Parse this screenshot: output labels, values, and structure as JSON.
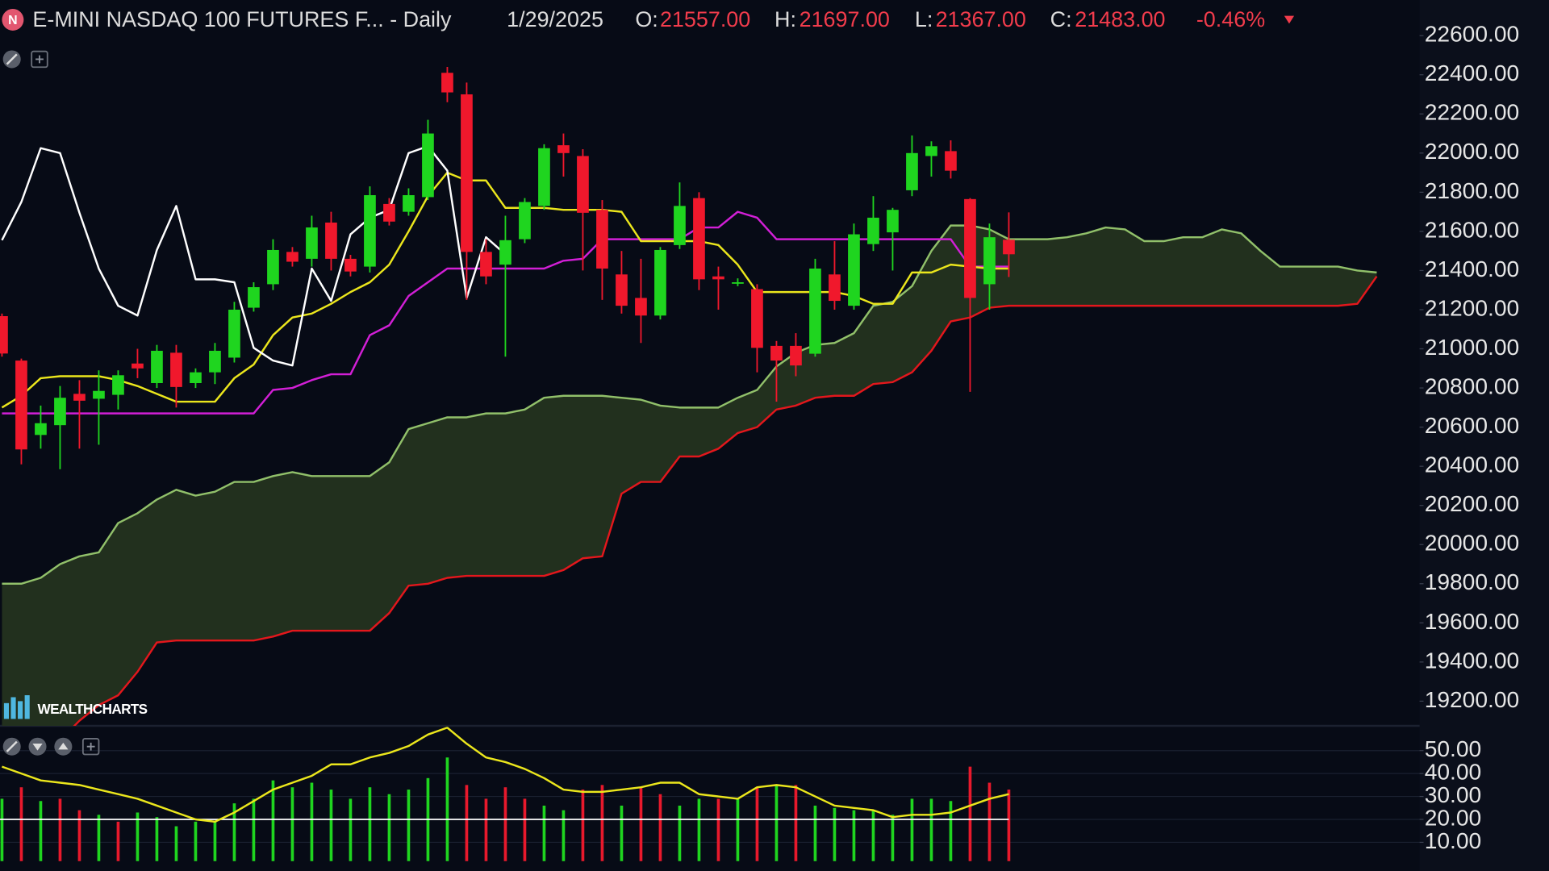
{
  "header": {
    "symbol_icon": "N",
    "title": "E-MINI NASDAQ 100 FUTURES F... - Daily",
    "date": "1/29/2025",
    "fields": [
      {
        "label": "O:",
        "value": "21557.00"
      },
      {
        "label": "H:",
        "value": "21697.00"
      },
      {
        "label": "L:",
        "value": "21367.00"
      },
      {
        "label": "C:",
        "value": "21483.00"
      }
    ],
    "change": "-0.46%"
  },
  "branding": "WEALTHCHARTS",
  "chart_data": [
    {
      "type": "candlestick",
      "ylim": [
        19074,
        22782
      ],
      "yticks": [
        {
          "value": 22600,
          "label": "22600.00"
        },
        {
          "value": 22400,
          "label": "22400.00"
        },
        {
          "value": 22200,
          "label": "22200.00"
        },
        {
          "value": 22000,
          "label": "22000.00"
        },
        {
          "value": 21800,
          "label": "21800.00"
        },
        {
          "value": 21600,
          "label": "21600.00"
        },
        {
          "value": 21400,
          "label": "21400.00"
        },
        {
          "value": 21200,
          "label": "21200.00"
        },
        {
          "value": 21000,
          "label": "21000.00"
        },
        {
          "value": 20800,
          "label": "20800.00"
        },
        {
          "value": 20600,
          "label": "20600.00"
        },
        {
          "value": 20400,
          "label": "20400.00"
        },
        {
          "value": 20200,
          "label": "20200.00"
        },
        {
          "value": 20000,
          "label": "20000.00"
        },
        {
          "value": 19800,
          "label": "19800.00"
        },
        {
          "value": 19600,
          "label": "19600.00"
        },
        {
          "value": 19400,
          "label": "19400.00"
        },
        {
          "value": 19200,
          "label": "19200.00"
        }
      ],
      "grid": false,
      "up_color": "#1fd51f",
      "down_color": "#f0182c",
      "open": [
        21167,
        20940,
        20560,
        20610,
        20770,
        20745,
        20765,
        20925,
        20825,
        20980,
        20825,
        20880,
        20955,
        21210,
        21330,
        21495,
        21460,
        21645,
        21460,
        21420,
        21740,
        21700,
        21775,
        22410,
        22300,
        21495,
        21430,
        21560,
        21730,
        22040,
        21985,
        21710,
        21380,
        21260,
        21170,
        21530,
        21770,
        21370,
        21335,
        21305,
        21015,
        21015,
        20975,
        21380,
        21220,
        21535,
        21595,
        21810,
        21985,
        22010,
        21765,
        21330,
        21557
      ],
      "high": [
        21180,
        20950,
        20710,
        20810,
        20840,
        20890,
        20890,
        21000,
        21020,
        21020,
        20900,
        21030,
        21240,
        21340,
        21560,
        21520,
        21680,
        21700,
        21480,
        21830,
        21770,
        21820,
        22170,
        22440,
        22360,
        21560,
        21680,
        21770,
        22045,
        22100,
        22020,
        21760,
        21500,
        21460,
        21520,
        21850,
        21800,
        21420,
        21360,
        21330,
        21040,
        21080,
        21460,
        21550,
        21640,
        21780,
        21720,
        22090,
        22060,
        22065,
        21770,
        21640,
        21697
      ],
      "low": [
        20960,
        20410,
        20490,
        20385,
        20490,
        20510,
        20690,
        20850,
        20800,
        20700,
        20800,
        20820,
        20930,
        21190,
        21300,
        21420,
        21420,
        21400,
        21370,
        21390,
        21630,
        21680,
        21760,
        22260,
        21250,
        21330,
        20960,
        21540,
        21710,
        21880,
        21400,
        21250,
        21180,
        21030,
        21150,
        21510,
        21300,
        21200,
        21320,
        20880,
        20730,
        20860,
        20960,
        21200,
        21200,
        21500,
        21400,
        21780,
        21880,
        21870,
        20780,
        21200,
        21367
      ],
      "close": [
        20976,
        20486,
        20620,
        20750,
        20735,
        20785,
        20865,
        20900,
        20990,
        20805,
        20880,
        20990,
        21200,
        21315,
        21505,
        21445,
        21620,
        21460,
        21395,
        21785,
        21650,
        21785,
        22100,
        22310,
        21495,
        21370,
        21555,
        21750,
        22025,
        22000,
        21695,
        21410,
        21220,
        21170,
        21505,
        21730,
        21355,
        21355,
        21340,
        21005,
        20940,
        20915,
        21410,
        21245,
        21585,
        21670,
        21710,
        22000,
        22035,
        21910,
        21260,
        21570,
        21483
      ],
      "cloud_color": "#24331f",
      "overlays": [
        {
          "color": "#91c06a",
          "values": [
            19800,
            19800,
            19830,
            19900,
            19940,
            19960,
            20110,
            20160,
            20230,
            20280,
            20250,
            20270,
            20320,
            20320,
            20350,
            20370,
            20350,
            20350,
            20350,
            20350,
            20420,
            20590,
            20620,
            20650,
            20650,
            20670,
            20670,
            20690,
            20750,
            20760,
            20760,
            20760,
            20750,
            20740,
            20710,
            20700,
            20700,
            20700,
            20750,
            20790,
            20910,
            20980,
            21020,
            21030,
            21080,
            21220,
            21240,
            21320,
            21500,
            21630,
            21630,
            21610,
            21560,
            21560,
            21560,
            21570,
            21590,
            21620,
            21610,
            21550,
            21550,
            21570,
            21570,
            21610,
            21590,
            21500,
            21420,
            21420,
            21420,
            21420,
            21400,
            21390
          ]
        },
        {
          "color": "#e3171c",
          "values": [
            19000,
            19000,
            19000,
            19000,
            19100,
            19180,
            19230,
            19350,
            19500,
            19510,
            19510,
            19510,
            19510,
            19510,
            19530,
            19560,
            19560,
            19560,
            19560,
            19560,
            19650,
            19790,
            19800,
            19830,
            19840,
            19840,
            19840,
            19840,
            19840,
            19870,
            19930,
            19940,
            20260,
            20320,
            20320,
            20450,
            20450,
            20490,
            20570,
            20600,
            20690,
            20710,
            20750,
            20760,
            20760,
            20820,
            20830,
            20880,
            20990,
            21140,
            21160,
            21210,
            21220,
            21220,
            21220,
            21220,
            21220,
            21220,
            21220,
            21220,
            21220,
            21220,
            21220,
            21220,
            21220,
            21220,
            21220,
            21220,
            21220,
            21220,
            21230,
            21370
          ]
        },
        {
          "color": "#d21fd6",
          "values": [
            20670,
            20670,
            20670,
            20670,
            20670,
            20670,
            20670,
            20670,
            20670,
            20670,
            20670,
            20670,
            20670,
            20670,
            20790,
            20800,
            20840,
            20870,
            20870,
            21070,
            21120,
            21270,
            21340,
            21410,
            21410,
            21410,
            21410,
            21410,
            21410,
            21450,
            21460,
            21560,
            21560,
            21560,
            21560,
            21560,
            21620,
            21620,
            21700,
            21670,
            21560,
            21560,
            21560,
            21560,
            21560,
            21560,
            21560,
            21560,
            21560,
            21560,
            21420,
            21420,
            21420
          ]
        },
        {
          "color": "#ebe61c",
          "values": [
            20700,
            20760,
            20850,
            20860,
            20860,
            20860,
            20840,
            20810,
            20770,
            20730,
            20730,
            20730,
            20850,
            20920,
            21070,
            21160,
            21180,
            21230,
            21290,
            21340,
            21430,
            21600,
            21780,
            21900,
            21860,
            21860,
            21720,
            21720,
            21720,
            21710,
            21710,
            21710,
            21700,
            21550,
            21550,
            21550,
            21550,
            21530,
            21430,
            21290,
            21290,
            21290,
            21290,
            21290,
            21270,
            21230,
            21230,
            21390,
            21390,
            21430,
            21420,
            21410,
            21410
          ]
        },
        {
          "color": "#ffffff",
          "values": [
            21555,
            21750,
            22025,
            22000,
            21695,
            21410,
            21220,
            21170,
            21505,
            21730,
            21355,
            21355,
            21340,
            21005,
            20940,
            20915,
            21410,
            21245,
            21585,
            21670,
            21710,
            22000,
            22035,
            21910,
            21260,
            21570,
            21483
          ]
        }
      ]
    },
    {
      "type": "bar",
      "ylim": [
        1.8,
        60.8
      ],
      "yticks": [
        {
          "value": 50,
          "label": "50.00"
        },
        {
          "value": 40,
          "label": "40.00"
        },
        {
          "value": 30,
          "label": "30.00"
        },
        {
          "value": 20,
          "label": "20.00"
        },
        {
          "value": 10,
          "label": "10.00"
        }
      ],
      "grid": true,
      "values": [
        29,
        34,
        28,
        29,
        24,
        22,
        19,
        23,
        21,
        17,
        19,
        19,
        27,
        29,
        37,
        34,
        36,
        33,
        29,
        34,
        31,
        33,
        38,
        47,
        35,
        29,
        34,
        29,
        26,
        24,
        33,
        35,
        26,
        34,
        31,
        26,
        29,
        29,
        29,
        34,
        35,
        35,
        26,
        25,
        24,
        24,
        22,
        29,
        29,
        28,
        43,
        36,
        33
      ],
      "colors": [
        "#1fd51f",
        "#e8192c",
        "#1fd51f",
        "#e8192c",
        "#e8192c",
        "#1fd51f",
        "#e8192c",
        "#1fd51f",
        "#1fd51f",
        "#1fd51f",
        "#1fd51f",
        "#1fd51f",
        "#1fd51f",
        "#1fd51f",
        "#1fd51f",
        "#1fd51f",
        "#1fd51f",
        "#1fd51f",
        "#1fd51f",
        "#1fd51f",
        "#1fd51f",
        "#1fd51f",
        "#1fd51f",
        "#1fd51f",
        "#e8192c",
        "#e8192c",
        "#e8192c",
        "#e8192c",
        "#1fd51f",
        "#1fd51f",
        "#e8192c",
        "#e8192c",
        "#1fd51f",
        "#e8192c",
        "#e8192c",
        "#1fd51f",
        "#1fd51f",
        "#e8192c",
        "#1fd51f",
        "#e8192c",
        "#1fd51f",
        "#e8192c",
        "#1fd51f",
        "#1fd51f",
        "#1fd51f",
        "#1fd51f",
        "#1fd51f",
        "#1fd51f",
        "#1fd51f",
        "#1fd51f",
        "#e8192c",
        "#e8192c",
        "#e8192c"
      ],
      "line": {
        "color": "#ebe61c",
        "values": [
          43,
          40,
          37,
          36,
          35,
          33,
          31,
          29,
          26,
          23,
          20,
          19,
          23,
          28,
          33,
          36,
          39,
          44,
          44,
          47,
          49,
          52,
          57,
          60,
          53,
          47,
          45,
          42,
          38,
          33,
          32,
          32,
          33,
          34,
          36,
          36,
          31,
          30,
          29,
          34,
          35,
          34,
          30,
          26,
          25,
          24,
          21,
          22,
          22,
          23,
          26,
          29,
          31
        ]
      },
      "reference_line": {
        "value": 20,
        "color": "#ffffff"
      }
    }
  ]
}
